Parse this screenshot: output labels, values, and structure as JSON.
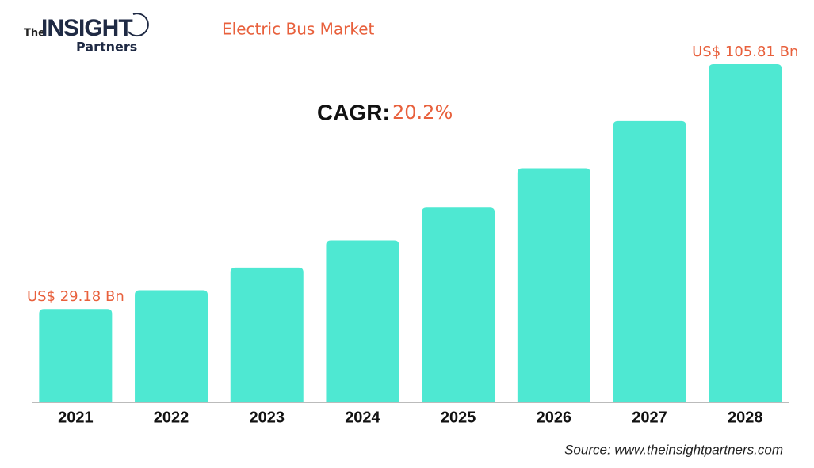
{
  "logo": {
    "the": "The",
    "insight": "INSIGHT",
    "partners": "Partners"
  },
  "chart_data": {
    "type": "bar",
    "title": "Electric Bus Market",
    "cagr": {
      "label": "CAGR:",
      "value": "20.2%"
    },
    "categories": [
      "2021",
      "2022",
      "2023",
      "2024",
      "2025",
      "2026",
      "2027",
      "2028"
    ],
    "values": [
      29.18,
      35.07,
      42.16,
      50.68,
      60.91,
      73.22,
      88.01,
      105.81
    ],
    "value_labels": [
      "US$ 29.18 Bn",
      null,
      null,
      null,
      null,
      null,
      null,
      "US$ 105.81 Bn"
    ],
    "color": "#4ee8d2",
    "source": "Source: www.theinsightpartners.com"
  }
}
